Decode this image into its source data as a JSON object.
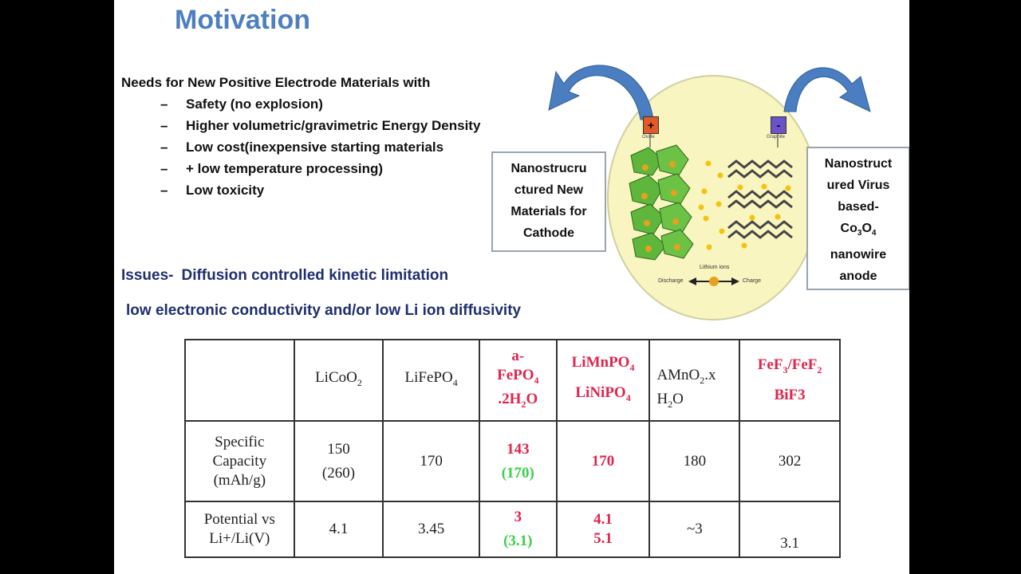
{
  "slide": {
    "title": "Motivation",
    "needs_heading": "Needs for New Positive Electrode Materials with",
    "bullet_dash": "–",
    "bullets": [
      "Safety (no explosion)",
      "Higher volumetric/gravimetric Energy Density",
      "Low cost(inexpensive starting materials",
      "+ low temperature processing)",
      "Low toxicity"
    ],
    "issues_label": "Issues-",
    "issues_text": "Diffusion controlled kinetic limitation",
    "low_text": "low electronic conductivity and/or low Li ion diffusivity"
  },
  "diagram": {
    "cathode_box": [
      "Nanostrucru",
      "ctured New",
      "Materials for",
      "Cathode"
    ],
    "anode_box": [
      "Nanostruct",
      "ured Virus",
      "based-",
      "Co",
      "3",
      "O",
      "4",
      "nanowire",
      "anode"
    ],
    "terminal_plus": "+",
    "terminal_minus": "-",
    "cathode_tiny": "Oxide",
    "anode_tiny": "Graphite",
    "li_ions_label": "Lithium ions",
    "discharge_label": "Discharge",
    "charge_label": "Charge",
    "colors": {
      "circle": "#f8f5c0",
      "arrow": "#4a7ec0",
      "cathode_crystal": "#5fb63c",
      "anode_layers": "#444444",
      "ions": "#f2c40f"
    }
  },
  "table": {
    "headers": {
      "licoo2": [
        "LiCoO",
        "2"
      ],
      "lifepo4": [
        "LiFePO",
        "4"
      ],
      "afepo4": [
        "a-",
        "FePO",
        "4",
        ".2H",
        "2",
        "O"
      ],
      "limn": [
        "LiMnPO",
        "4",
        "LiNiPO",
        "4"
      ],
      "amno2": [
        "AMnO",
        "2",
        ".x",
        "H",
        "2",
        "O"
      ],
      "fef": [
        "FeF",
        "3",
        "/FeF",
        "2",
        "BiF3"
      ]
    },
    "row1": {
      "label": [
        "Specific",
        "Capacity",
        "(mAh/g)"
      ],
      "licoo2": [
        "150",
        "(260)"
      ],
      "lifepo4": "170",
      "afepo4": [
        "143",
        "(170)"
      ],
      "limn": "170",
      "amno2": "180",
      "fef": "302"
    },
    "row2": {
      "label": [
        "Potential vs",
        "Li+/Li(V)"
      ],
      "licoo2": "4.1",
      "lifepo4": "3.45",
      "afepo4": [
        "3",
        "(3.1)"
      ],
      "limn": [
        "4.1",
        "5.1"
      ],
      "amno2": "~3",
      "fef": "3.1"
    }
  }
}
